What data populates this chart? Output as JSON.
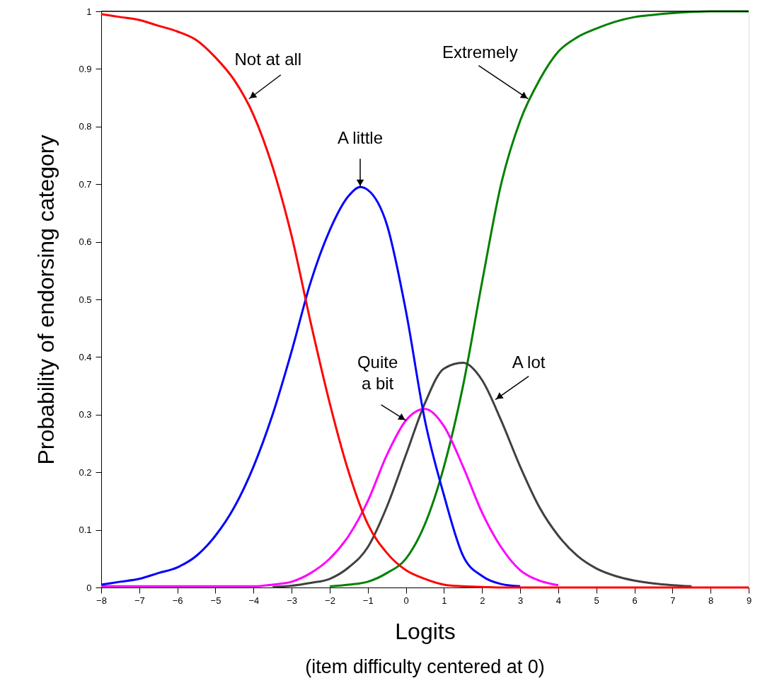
{
  "chart_data": {
    "type": "line",
    "xlabel": "Logits",
    "ylabel": "Probability of endorsing category",
    "x": [
      -8,
      -7.5,
      -7,
      -6.5,
      -6,
      -5.5,
      -5,
      -4.5,
      -4,
      -3.5,
      -3,
      -2.5,
      -2,
      -1.5,
      -1,
      -0.5,
      0,
      0.5,
      1,
      1.5,
      2,
      2.5,
      3,
      3.5,
      4,
      4.5,
      5,
      5.5,
      6,
      6.5,
      7,
      7.5,
      8,
      8.5,
      9
    ],
    "series": [
      {
        "color": "#ff0000",
        "values": [
          0.995,
          0.99,
          0.985,
          0.975,
          0.965,
          0.95,
          0.92,
          0.88,
          0.82,
          0.73,
          0.61,
          0.46,
          0.32,
          0.2,
          0.11,
          0.06,
          0.03,
          0.015,
          0.005,
          0.002,
          0.001,
          0,
          0,
          0,
          0,
          0,
          0,
          0,
          0,
          0,
          0,
          0,
          0,
          0,
          0
        ]
      },
      {
        "color": "#0000ff",
        "x": [
          -8,
          -7.5,
          -7,
          -6.5,
          -6,
          -5.5,
          -5,
          -4.5,
          -4,
          -3.5,
          -3,
          -2.5,
          -2,
          -1.5,
          -1.2,
          -1,
          -0.5,
          0,
          0.5,
          1,
          1.5,
          2,
          2.5,
          3
        ],
        "values": [
          0.005,
          0.01,
          0.015,
          0.025,
          0.035,
          0.055,
          0.09,
          0.14,
          0.21,
          0.3,
          0.41,
          0.53,
          0.62,
          0.68,
          0.695,
          0.69,
          0.63,
          0.48,
          0.29,
          0.16,
          0.055,
          0.02,
          0.006,
          0.002
        ]
      },
      {
        "color": "#ff00ff",
        "values": [
          0.002,
          0.002,
          0.002,
          0.002,
          0.002,
          0.002,
          0.002,
          0.002,
          0.002,
          0.005,
          0.01,
          0.025,
          0.05,
          0.09,
          0.15,
          0.23,
          0.29,
          0.31,
          0.28,
          0.21,
          0.13,
          0.07,
          0.03,
          0.012,
          0.004,
          null,
          null,
          null,
          null,
          null,
          null,
          null,
          null,
          null,
          null
        ]
      },
      {
        "color": "#404040",
        "values": [
          null,
          null,
          null,
          null,
          null,
          null,
          null,
          null,
          null,
          0.001,
          0.003,
          0.008,
          0.015,
          0.035,
          0.07,
          0.14,
          0.23,
          0.32,
          0.38,
          0.39,
          0.36,
          0.29,
          0.21,
          0.14,
          0.09,
          0.055,
          0.033,
          0.02,
          0.012,
          0.007,
          0.004,
          0.002,
          null,
          null,
          null
        ]
      },
      {
        "color": "#008000",
        "values": [
          null,
          null,
          null,
          null,
          null,
          null,
          null,
          null,
          null,
          null,
          null,
          null,
          0.002,
          0.005,
          0.01,
          0.025,
          0.05,
          0.11,
          0.21,
          0.35,
          0.53,
          0.7,
          0.81,
          0.88,
          0.93,
          0.955,
          0.97,
          0.982,
          0.99,
          0.994,
          0.997,
          0.999,
          1,
          1,
          1
        ]
      }
    ],
    "xlim": [
      -8,
      9
    ],
    "xticks": [
      -8,
      -7,
      -6,
      -5,
      -4,
      -3,
      -2,
      -1,
      0,
      1,
      2,
      3,
      4,
      5,
      6,
      7,
      8,
      9
    ],
    "ylim": [
      0,
      1
    ],
    "yticks": [
      0,
      0.1,
      0.2,
      0.3,
      0.4,
      0.5,
      0.6,
      0.7,
      0.8,
      0.9,
      1
    ],
    "grid": false,
    "marker": "none",
    "line_style": "solid",
    "annotations": [
      {
        "text": "Not at all",
        "x": -4.12,
        "y": 0.848
      },
      {
        "text": "A little",
        "x": -1.2,
        "y": 0.695
      },
      {
        "text": "Extremely",
        "x": 3.21,
        "y": 0.848
      },
      {
        "text": "Quite\na bit",
        "x": 0,
        "y": 0.29
      },
      {
        "text": "A lot",
        "x": 2.35,
        "y": 0.326
      },
      "(item difficulty centered at 0)"
    ]
  }
}
